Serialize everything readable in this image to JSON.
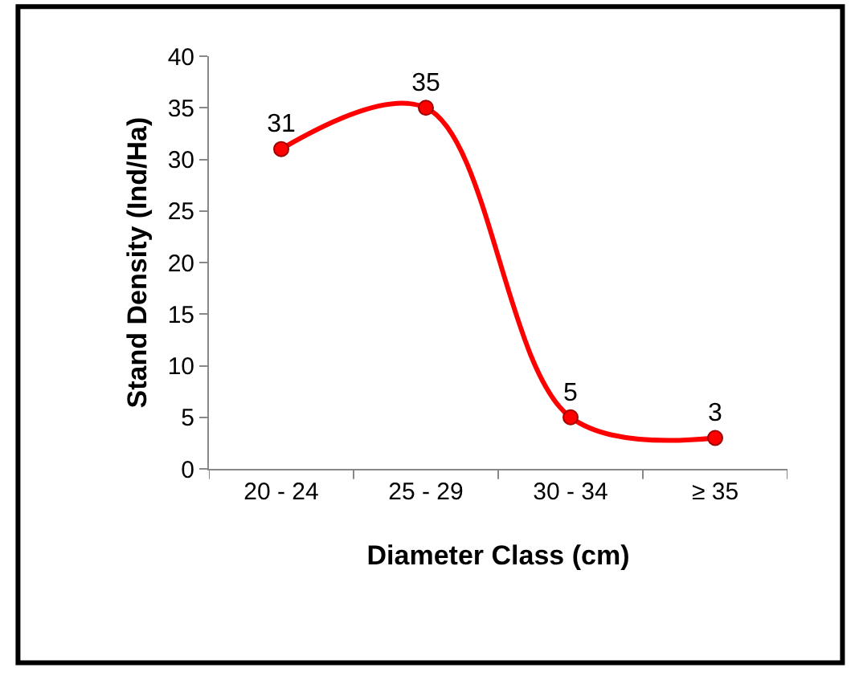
{
  "chart_data": {
    "type": "line",
    "xlabel": "Diameter Class (cm)",
    "ylabel": "Stand Density (Ind/Ha)",
    "categories": [
      "20 - 24",
      "25 - 29",
      "30 - 34",
      "≥ 35"
    ],
    "series": [
      {
        "color": "#ff0000",
        "values": [
          31,
          35,
          5,
          3
        ]
      }
    ],
    "ylim": [
      0,
      40
    ],
    "yticks": [
      0,
      5,
      10,
      15,
      20,
      25,
      30,
      35,
      40
    ],
    "legend": false,
    "marker": "circle",
    "line_style": "solid",
    "data_labels": true
  }
}
